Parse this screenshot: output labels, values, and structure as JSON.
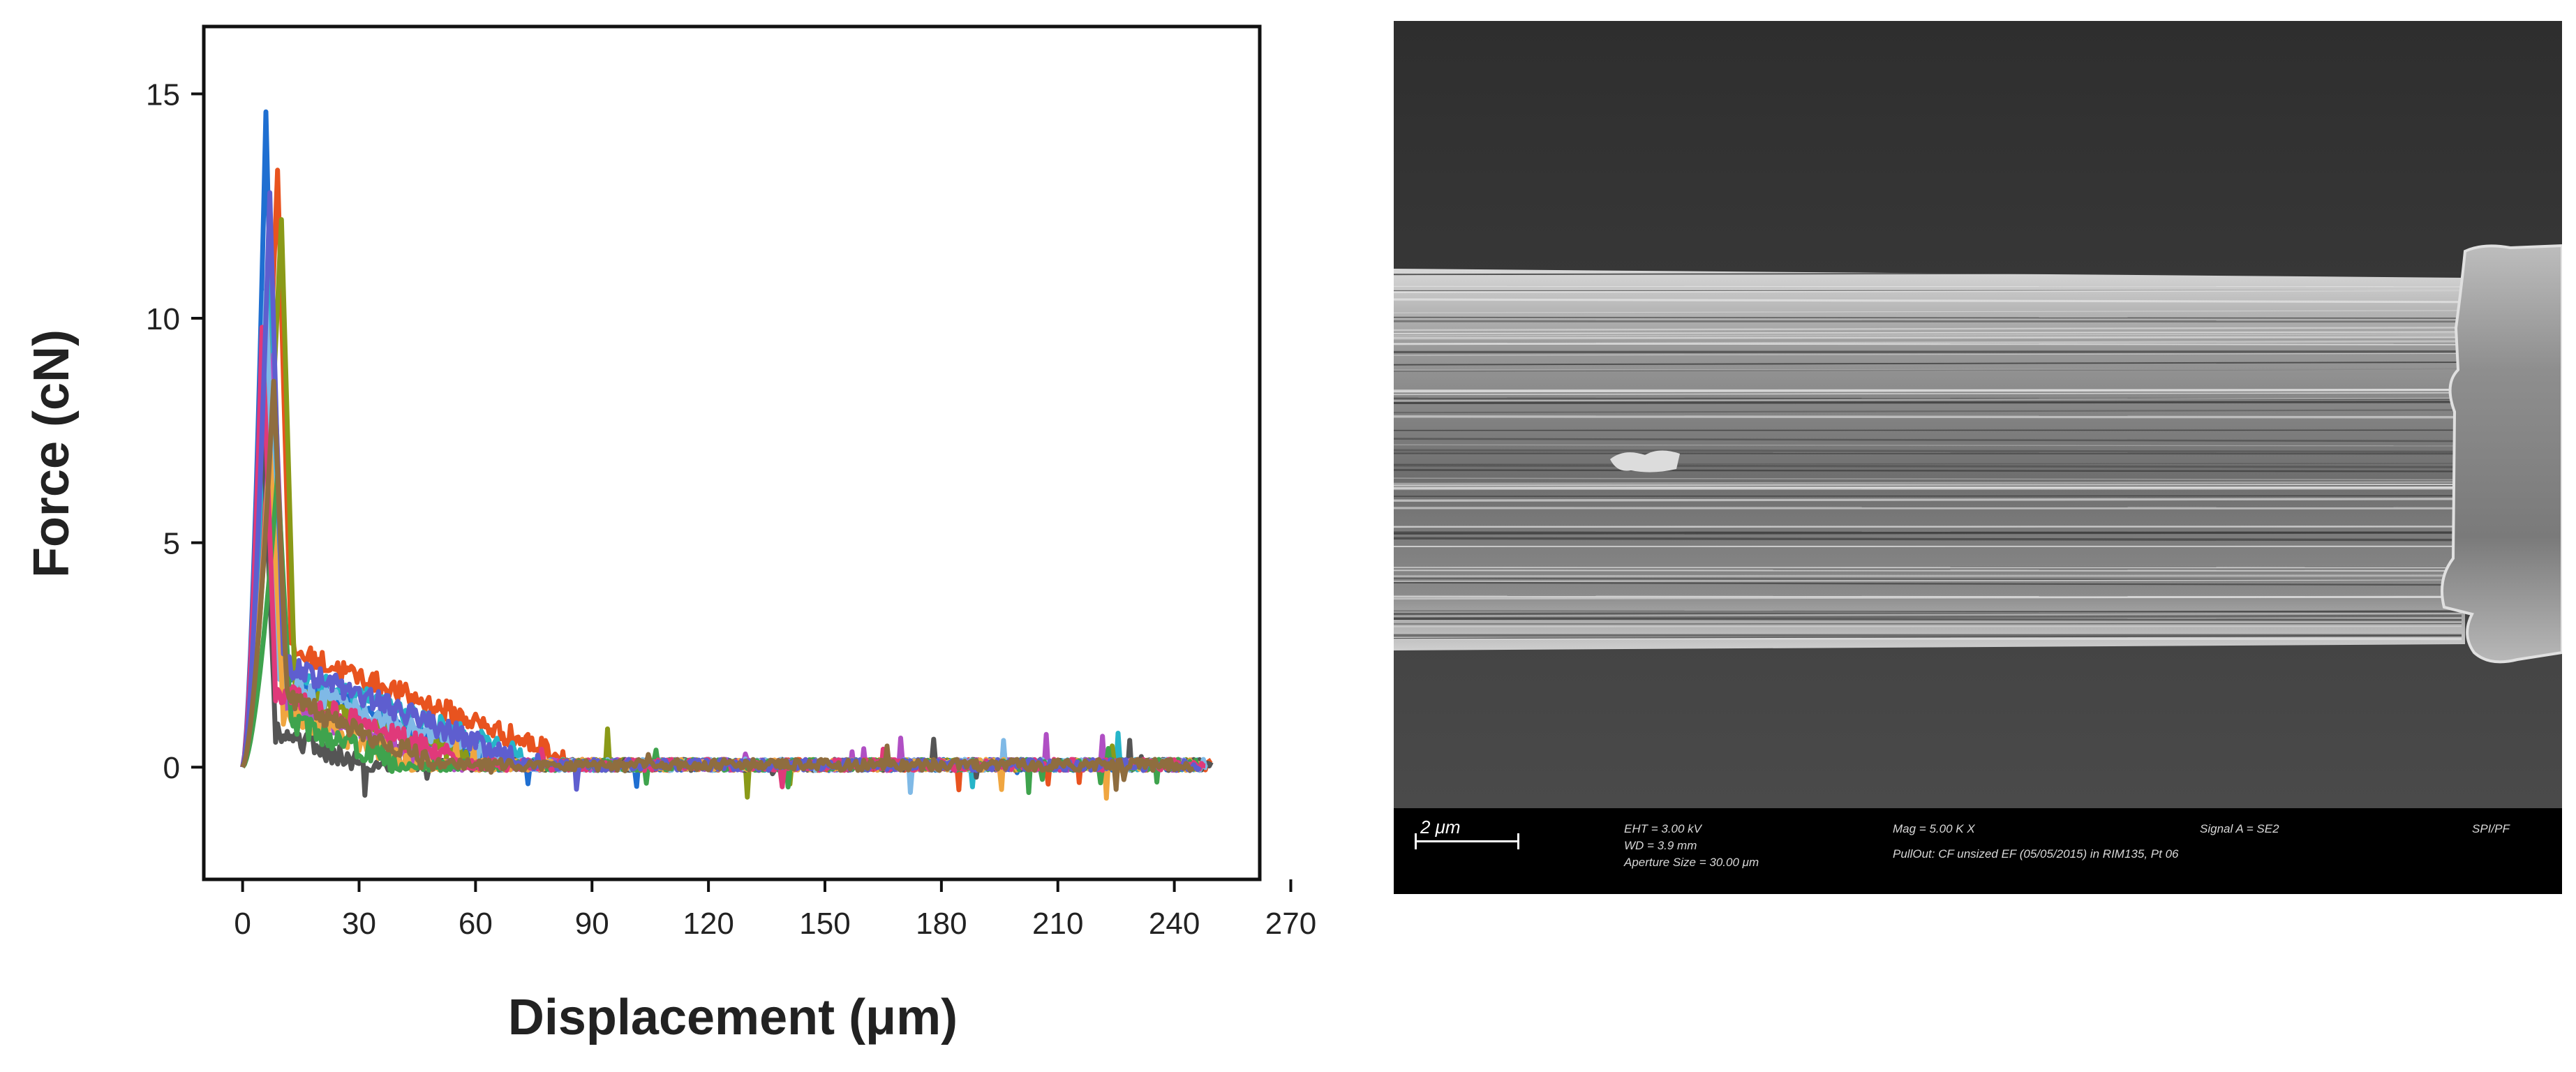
{
  "chart_data": {
    "type": "line",
    "title": "",
    "xlabel": "Displacement (μm)",
    "ylabel": "Force (cN)",
    "xlim": [
      -10,
      262
    ],
    "ylim": [
      -2.5,
      16.5
    ],
    "xticks": [
      0,
      30,
      60,
      90,
      120,
      150,
      180,
      210,
      240,
      270
    ],
    "yticks": [
      0,
      5,
      10,
      15
    ],
    "legend": "none",
    "grid": false,
    "series_note_colors": [
      "#1f6fd1",
      "#e8531f",
      "#26b5c9",
      "#8a9a18",
      "#555555",
      "#b04fc4",
      "#7fb9e6",
      "#f0a640",
      "#3fa34d",
      "#e0397a",
      "#5e5ecf",
      "#8f6d3f"
    ],
    "series": [
      {
        "color": "#1f6fd1",
        "peak": 14.6,
        "peak_x": 6,
        "plateau": 2.0,
        "plateau_end": 62
      },
      {
        "color": "#e8531f",
        "peak": 13.3,
        "peak_x": 9,
        "plateau": 2.6,
        "plateau_end": 82
      },
      {
        "color": "#26b5c9",
        "peak": 11.5,
        "peak_x": 7,
        "plateau": 2.2,
        "plateau_end": 72
      },
      {
        "color": "#8a9a18",
        "peak": 12.2,
        "peak_x": 10,
        "plateau": 1.6,
        "plateau_end": 58
      },
      {
        "color": "#555555",
        "peak": 8.0,
        "peak_x": 5,
        "plateau": 0.8,
        "plateau_end": 30
      },
      {
        "color": "#b04fc4",
        "peak": 9.2,
        "peak_x": 8,
        "plateau": 1.4,
        "plateau_end": 50
      },
      {
        "color": "#7fb9e6",
        "peak": 10.6,
        "peak_x": 6,
        "plateau": 1.9,
        "plateau_end": 66
      },
      {
        "color": "#f0a640",
        "peak": 7.2,
        "peak_x": 7,
        "plateau": 1.2,
        "plateau_end": 45
      },
      {
        "color": "#3fa34d",
        "peak": 6.5,
        "peak_x": 9,
        "plateau": 1.0,
        "plateau_end": 40
      },
      {
        "color": "#e0397a",
        "peak": 9.8,
        "peak_x": 5,
        "plateau": 1.7,
        "plateau_end": 55
      },
      {
        "color": "#5e5ecf",
        "peak": 12.8,
        "peak_x": 7,
        "plateau": 2.3,
        "plateau_end": 70
      },
      {
        "color": "#8f6d3f",
        "peak": 8.6,
        "peak_x": 8,
        "plateau": 1.5,
        "plateau_end": 48
      }
    ]
  },
  "sem": {
    "scale_label": "2 μm",
    "eht": "EHT = 3.00 kV",
    "wd": "WD = 3.9 mm",
    "aperture": "Aperture Size = 30.00 μm",
    "mag": "Mag =  5.00 K X",
    "pulldut": "PullOut: CF unsized EF (05/05/2015) in RIM135, Pt 06",
    "signal": "Signal A = SE2",
    "code": "SPI/PF"
  }
}
